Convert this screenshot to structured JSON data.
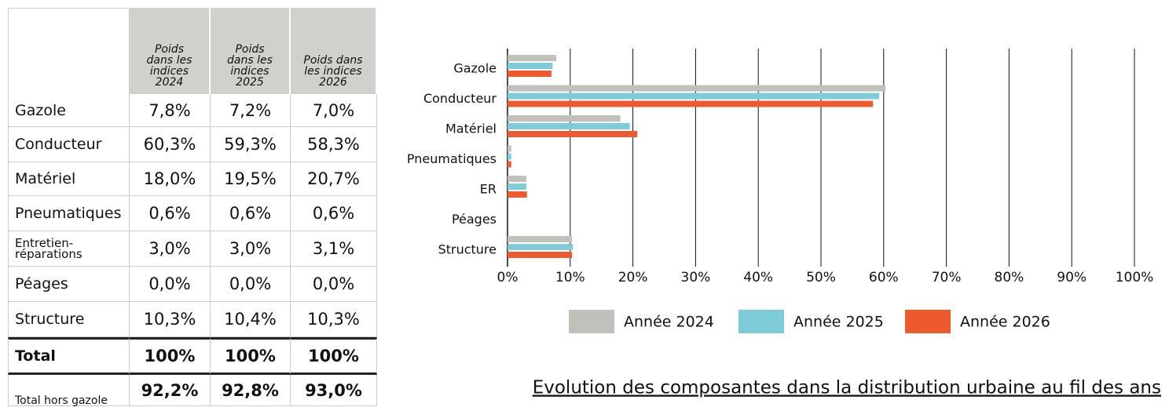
{
  "table": {
    "header": [
      "",
      "Poids dans les indices 2024",
      "Poids dans les indices 2025",
      "Poids dans les indices 2026"
    ],
    "rows": [
      [
        "Gazole",
        "7,8%",
        "7,2%",
        "7,0%"
      ],
      [
        "Conducteur",
        "60,3%",
        "59,3%",
        "58,3%"
      ],
      [
        "Matériel",
        "18,0%",
        "19,5%",
        "20,7%"
      ],
      [
        "Pneumatiques",
        "0,6%",
        "0,6%",
        "0,6%"
      ],
      [
        "Entretien-réparations",
        "3,0%",
        "3,0%",
        "3,1%"
      ],
      [
        "Péages",
        "0,0%",
        "0,0%",
        "0,0%"
      ],
      [
        "Structure",
        "10,3%",
        "10,4%",
        "10,3%"
      ],
      [
        "Total",
        "100%",
        "100%",
        "100%"
      ],
      [
        "Total hors gazole",
        "92,2%",
        "92,8%",
        "93,0%"
      ]
    ]
  },
  "chart_data": {
    "type": "hbar",
    "title": "Evolution des composantes dans la distribution urbaine au fil des ans",
    "categories": [
      "Gazole",
      "Conducteur",
      "Matériel",
      "Pneumatiques",
      "ER",
      "Péages",
      "Structure"
    ],
    "series": [
      {
        "name": "Année 2024",
        "color": "#c1c0ba",
        "values": [
          7.8,
          60.3,
          18.0,
          0.6,
          3.0,
          0.0,
          10.3
        ]
      },
      {
        "name": "Année 2025",
        "color": "#7ecbd9",
        "values": [
          7.2,
          59.3,
          19.5,
          0.6,
          3.0,
          0.0,
          10.4
        ]
      },
      {
        "name": "Année 2026",
        "color": "#ee5a2b",
        "values": [
          7.0,
          58.3,
          20.7,
          0.6,
          3.1,
          0.0,
          10.3
        ]
      }
    ],
    "xlim": [
      0,
      100
    ],
    "xticks": [
      {
        "value": 0,
        "label": "0%"
      },
      {
        "value": 10,
        "label": "10%"
      },
      {
        "value": 20,
        "label": "20%"
      },
      {
        "value": 30,
        "label": "30%"
      },
      {
        "value": 40,
        "label": "40%"
      },
      {
        "value": 50,
        "label": "50%"
      },
      {
        "value": 60,
        "label": "60%"
      },
      {
        "value": 70,
        "label": "70%"
      },
      {
        "value": 80,
        "label": "80%"
      },
      {
        "value": 90,
        "label": "90%"
      },
      {
        "value": 100,
        "label": "100%"
      }
    ],
    "grid": true,
    "legend": "bottom"
  }
}
